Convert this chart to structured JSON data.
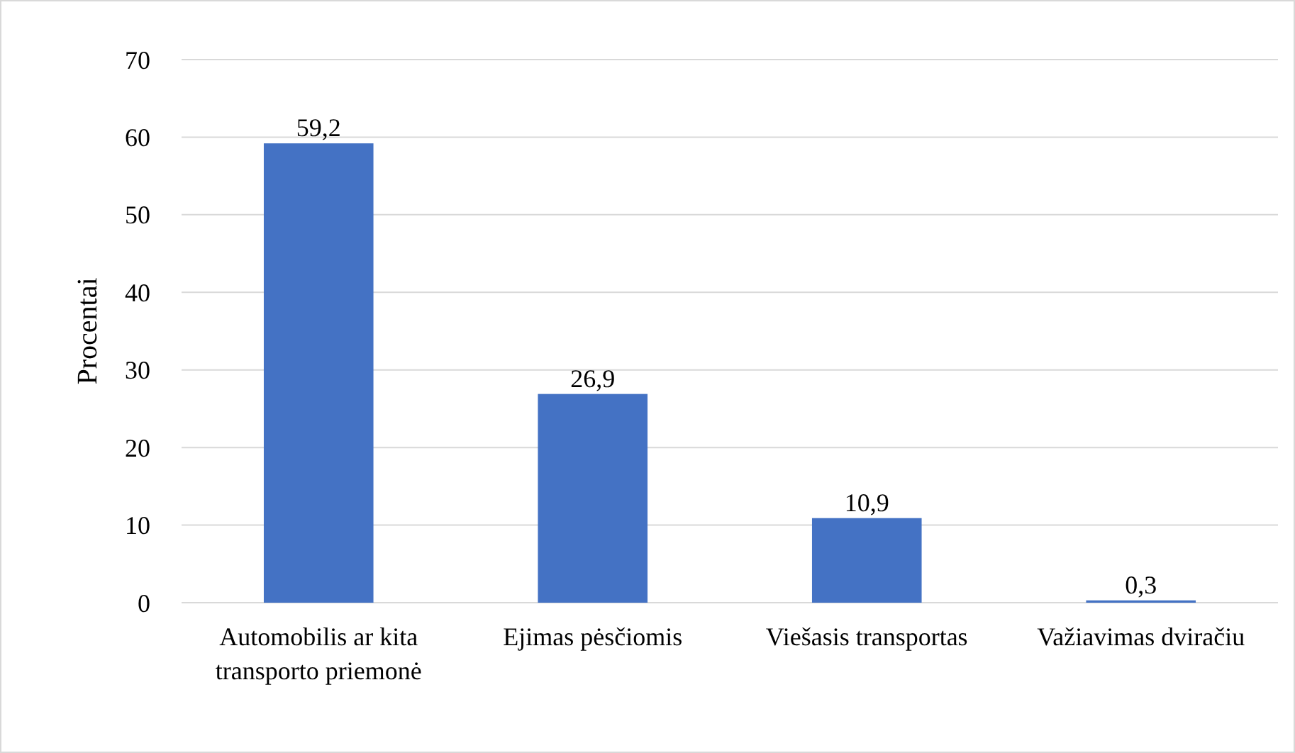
{
  "chart_data": {
    "type": "bar",
    "ylabel": "Procentai",
    "categories": [
      "Automobilis ar kita transporto priemonė",
      "Ejimas pėsčiomis",
      "Viešasis transportas",
      "Važiavimas dviračiu"
    ],
    "values": [
      59.2,
      26.9,
      10.9,
      0.3
    ],
    "value_labels": [
      "59,2",
      "26,9",
      "10,9",
      "0,3"
    ],
    "color": "#4472c4",
    "ylim": [
      0,
      70
    ],
    "yticks": [
      0,
      10,
      20,
      30,
      40,
      50,
      60,
      70
    ],
    "grid": "y"
  }
}
